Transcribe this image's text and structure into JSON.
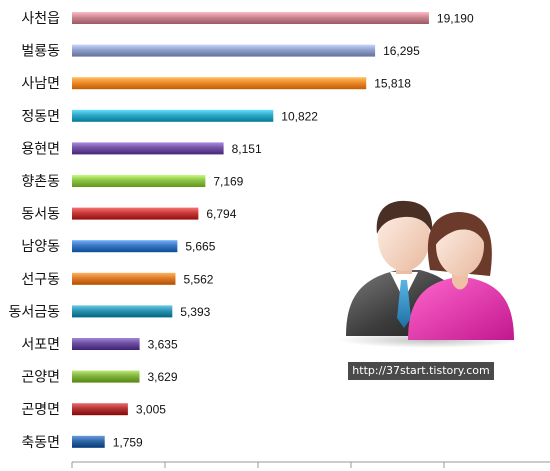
{
  "chart_data": {
    "type": "bar",
    "orientation": "horizontal",
    "categories": [
      "사천읍",
      "벌룡동",
      "사남면",
      "정동면",
      "용현면",
      "향촌동",
      "동서동",
      "남양동",
      "선구동",
      "동서금동",
      "서포면",
      "곤양면",
      "곤명면",
      "축동면"
    ],
    "values": [
      19190,
      16295,
      15818,
      10822,
      8151,
      7169,
      6794,
      5665,
      5562,
      5393,
      3635,
      3629,
      3005,
      1759
    ],
    "value_labels": [
      "19,190",
      "16,295",
      "15,818",
      "10,822",
      "8,151",
      "7,169",
      "6,794",
      "5,665",
      "5,562",
      "5,393",
      "3,635",
      "3,629",
      "3,005",
      "1,759"
    ],
    "colors": [
      "#c98590",
      "#8f9fc9",
      "#ee8a2a",
      "#2fa7c6",
      "#7453a6",
      "#8dc346",
      "#c43a3a",
      "#3a78c4",
      "#de7c2a",
      "#2d92b0",
      "#6b4ea0",
      "#82b33e",
      "#b33434",
      "#2f66a6"
    ],
    "xlim": [
      0,
      25000
    ],
    "x_ticks": [
      0,
      5000,
      10000,
      15000,
      20000
    ],
    "grid": false,
    "legend": "none",
    "title": "",
    "xlabel": "",
    "ylabel": ""
  },
  "watermark": {
    "text": "http://37start.tistory.com"
  },
  "illustration": {
    "icon": "people-icon"
  }
}
